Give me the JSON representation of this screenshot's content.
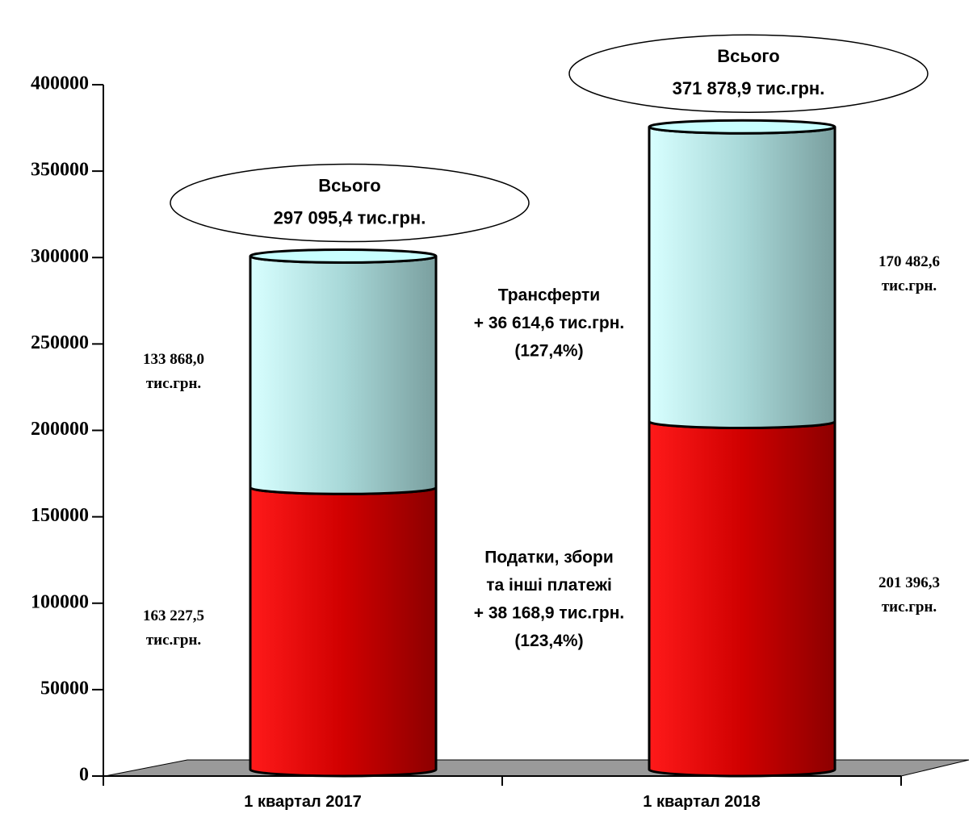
{
  "chart_data": {
    "type": "bar",
    "categories": [
      "1 квартал 2017",
      "1 квартал 2018"
    ],
    "series": [
      {
        "color": "#d80000",
        "values": [
          163227.5,
          201396.3
        ],
        "value_labels": [
          "163 227,5 тис.грн.",
          "201 396,3 тис.грн."
        ]
      },
      {
        "color": "#b8eeee",
        "values": [
          133868.0,
          170482.6
        ],
        "value_labels": [
          "133 868,0 тис.грн.",
          "170 482,6 тис.грн."
        ]
      }
    ],
    "totals": [
      {
        "title": "Всього",
        "label": "297 095,4 тис.грн."
      },
      {
        "title": "Всього",
        "label": "371 878,9 тис.грн."
      }
    ],
    "annotations": [
      [
        "Трансферти",
        "+ 36 614,6 тис.грн.",
        "(127,4%)"
      ],
      [
        "Податки, збори",
        "та інші платежі",
        "+ 38 168,9 тис.грн.",
        "(123,4%)"
      ]
    ],
    "ylim": [
      0,
      400000
    ],
    "yticks": [
      0,
      50000,
      100000,
      150000,
      200000,
      250000,
      300000,
      350000,
      400000
    ],
    "stacked": true
  }
}
